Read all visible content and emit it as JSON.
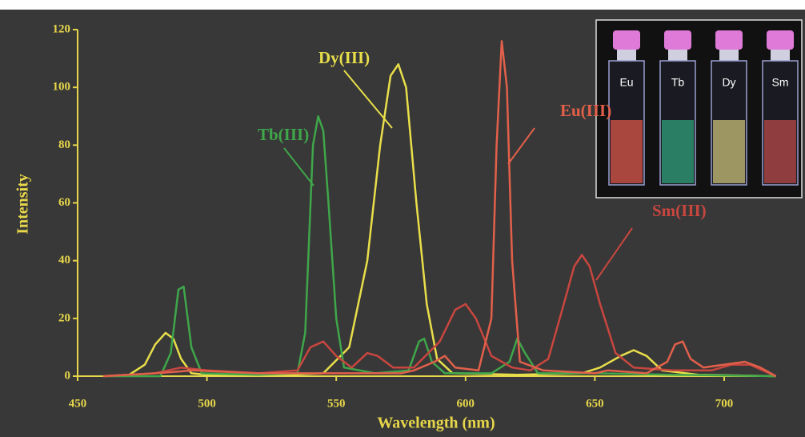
{
  "chart_data": {
    "type": "line",
    "xlabel": "Wavelength (nm)",
    "ylabel": "Intensity",
    "xlim": [
      450,
      720
    ],
    "ylim": [
      0,
      120
    ],
    "xticks": [
      450,
      500,
      550,
      600,
      650,
      700
    ],
    "yticks": [
      0,
      20,
      40,
      60,
      80,
      100,
      120
    ],
    "grid": false,
    "series": [
      {
        "name": "Tb(III)",
        "color": "#3fa64a",
        "x": [
          460,
          482,
          486,
          489,
          491,
          494,
          498,
          520,
          535,
          538,
          541,
          543,
          545,
          547,
          550,
          553,
          565,
          578,
          582,
          584,
          587,
          592,
          610,
          617,
          620,
          623,
          628,
          650,
          680,
          720
        ],
        "values": [
          0,
          0,
          8,
          30,
          31,
          10,
          1,
          0.5,
          1,
          15,
          80,
          90,
          85,
          60,
          20,
          3,
          1,
          2,
          12,
          13,
          5,
          1,
          1,
          5,
          13,
          8,
          1,
          1,
          0.5,
          0
        ]
      },
      {
        "name": "Dy(III)",
        "color": "#e8de4a",
        "x": [
          460,
          470,
          476,
          480,
          484,
          487,
          490,
          494,
          500,
          530,
          545,
          555,
          562,
          567,
          571,
          574,
          577,
          581,
          585,
          589,
          595,
          620,
          645,
          652,
          660,
          665,
          670,
          676,
          690,
          720
        ],
        "values": [
          0,
          0.5,
          4,
          11,
          15,
          13,
          6,
          1,
          0.5,
          0.5,
          1,
          10,
          40,
          80,
          104,
          108,
          100,
          60,
          25,
          6,
          1,
          0.5,
          1,
          3,
          7,
          9,
          7,
          2,
          0.5,
          0
        ]
      },
      {
        "name": "Eu(III)",
        "color": "#e2604a",
        "x": [
          460,
          480,
          495,
          520,
          550,
          575,
          580,
          588,
          592,
          596,
          605,
          610,
          612,
          614,
          616,
          618,
          621,
          630,
          650,
          655,
          670,
          678,
          681,
          684,
          687,
          692,
          700,
          708,
          714,
          720
        ],
        "values": [
          0,
          1,
          2,
          1,
          1,
          1,
          2,
          5,
          7,
          3,
          2,
          20,
          80,
          116,
          100,
          40,
          5,
          2,
          1,
          2,
          1,
          5,
          11,
          12,
          6,
          3,
          4,
          5,
          3,
          0
        ]
      },
      {
        "name": "Sm(III)",
        "color": "#c9463f",
        "x": [
          460,
          480,
          490,
          500,
          520,
          535,
          540,
          545,
          550,
          556,
          562,
          566,
          572,
          580,
          590,
          596,
          600,
          604,
          610,
          618,
          625,
          632,
          638,
          642,
          645,
          648,
          652,
          658,
          665,
          680,
          695,
          703,
          710,
          715,
          720
        ],
        "values": [
          0,
          1,
          3,
          2,
          1,
          2,
          10,
          12,
          7,
          3,
          8,
          7,
          3,
          3,
          12,
          23,
          25,
          20,
          7,
          3,
          2,
          6,
          25,
          38,
          42,
          38,
          25,
          8,
          3,
          2,
          2,
          4,
          4,
          2,
          0
        ]
      }
    ],
    "inset_labels": [
      "Eu",
      "Tb",
      "Dy",
      "Sm"
    ]
  }
}
